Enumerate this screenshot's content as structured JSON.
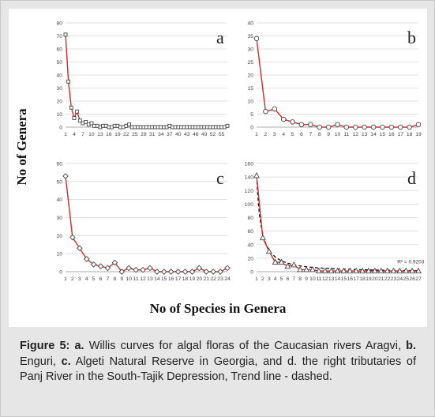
{
  "figure": {
    "ylabel": "No of Genera",
    "xlabel": "No of Species in Genera"
  },
  "caption": {
    "label": "Figure 5:",
    "parts": [
      {
        "bold": "a.",
        "text": " Willis curves for algal floras of the Caucasian rivers Aragvi, "
      },
      {
        "bold": "b.",
        "text": " Enguri, "
      },
      {
        "bold": "c.",
        "text": " Algeti Natural Reserve in Georgia, and d. the right tributaries of Panj River in the South-Tajik Depression, Trend line - dashed."
      }
    ]
  },
  "colors": {
    "line": "#d42a2a",
    "marker_stroke": "#444444",
    "grid": "#d9d9d9",
    "trend": "#111111"
  },
  "chart_data": [
    {
      "type": "line",
      "letter": "a",
      "marker": "square",
      "ylim": [
        0,
        80
      ],
      "yticks": [
        0,
        10,
        20,
        30,
        40,
        50,
        60,
        70,
        80
      ],
      "xlim": [
        1,
        57
      ],
      "xtick_labels": [
        "1",
        "4",
        "7",
        "10",
        "13",
        "16",
        "19",
        "22",
        "25",
        "28",
        "31",
        "34",
        "37",
        "40",
        "43",
        "46",
        "49",
        "52",
        "55"
      ],
      "x": [
        1,
        2,
        3,
        4,
        5,
        6,
        7,
        8,
        9,
        10,
        11,
        12,
        13,
        14,
        15,
        16,
        17,
        18,
        19,
        20,
        21,
        22,
        23,
        24,
        25,
        26,
        27,
        28,
        29,
        30,
        31,
        32,
        33,
        34,
        35,
        36,
        37,
        38,
        39,
        40,
        41,
        42,
        43,
        44,
        45,
        46,
        47,
        48,
        49,
        50,
        51,
        52,
        53,
        54,
        55,
        56,
        57
      ],
      "values": [
        71,
        35,
        15,
        7,
        12,
        5,
        3,
        4,
        2,
        3,
        1,
        1,
        0,
        1,
        1,
        0,
        0,
        1,
        1,
        0,
        0,
        1,
        2,
        0,
        0,
        0,
        0,
        0,
        0,
        0,
        0,
        0,
        0,
        0,
        0,
        0,
        1,
        0,
        0,
        0,
        0,
        0,
        0,
        0,
        0,
        0,
        0,
        0,
        0,
        0,
        0,
        0,
        0,
        0,
        0,
        0,
        1
      ],
      "grid": true,
      "legend": "none"
    },
    {
      "type": "line",
      "letter": "b",
      "marker": "circle",
      "ylim": [
        0,
        40
      ],
      "yticks": [
        0,
        5,
        10,
        15,
        20,
        25,
        30,
        35,
        40
      ],
      "xlim": [
        1,
        19
      ],
      "xtick_labels": [
        "1",
        "2",
        "3",
        "4",
        "5",
        "6",
        "7",
        "8",
        "9",
        "10",
        "11",
        "12",
        "13",
        "14",
        "15",
        "16",
        "17",
        "18",
        "19"
      ],
      "x": [
        1,
        2,
        3,
        4,
        5,
        6,
        7,
        8,
        9,
        10,
        11,
        12,
        13,
        14,
        15,
        16,
        17,
        18,
        19
      ],
      "values": [
        34,
        6,
        7,
        3,
        2,
        1,
        1,
        0,
        0,
        1,
        0,
        0,
        0,
        0,
        0,
        0,
        0,
        0,
        1
      ],
      "grid": true,
      "legend": "none"
    },
    {
      "type": "line",
      "letter": "c",
      "marker": "diamond",
      "ylim": [
        0,
        60
      ],
      "yticks": [
        0,
        10,
        20,
        30,
        40,
        50,
        60
      ],
      "xlim": [
        1,
        24
      ],
      "xtick_labels": [
        "1",
        "2",
        "3",
        "4",
        "5",
        "6",
        "7",
        "8",
        "9",
        "10",
        "11",
        "12",
        "13",
        "14",
        "15",
        "16",
        "17",
        "18",
        "19",
        "20",
        "21",
        "22",
        "23",
        "24"
      ],
      "x": [
        1,
        2,
        3,
        4,
        5,
        6,
        7,
        8,
        9,
        10,
        11,
        12,
        13,
        14,
        15,
        16,
        17,
        18,
        19,
        20,
        21,
        22,
        23,
        24
      ],
      "values": [
        53,
        19,
        13,
        7,
        4,
        3,
        2,
        5,
        0,
        2,
        1,
        1,
        2,
        0,
        0,
        0,
        0,
        0,
        0,
        2,
        0,
        0,
        0,
        2
      ],
      "grid": true,
      "legend": "none"
    },
    {
      "type": "line",
      "letter": "d",
      "marker": "triangle",
      "ylim": [
        0,
        160
      ],
      "yticks": [
        0,
        20,
        40,
        60,
        80,
        100,
        120,
        140,
        160
      ],
      "xlim": [
        1,
        27
      ],
      "xtick_labels": [
        "1",
        "2",
        "3",
        "4",
        "5",
        "6",
        "7",
        "8",
        "9",
        "10",
        "11",
        "12",
        "13",
        "14",
        "15",
        "16",
        "17",
        "18",
        "19",
        "20",
        "21",
        "22",
        "23",
        "24",
        "25",
        "26",
        "27"
      ],
      "x": [
        1,
        2,
        3,
        4,
        5,
        6,
        7,
        8,
        9,
        10,
        11,
        12,
        13,
        14,
        15,
        16,
        17,
        18,
        19,
        20,
        21,
        22,
        23,
        24,
        25,
        26,
        27
      ],
      "values": [
        142,
        50,
        30,
        14,
        14,
        8,
        10,
        3,
        3,
        3,
        1,
        1,
        1,
        1,
        1,
        1,
        1,
        1,
        1,
        1,
        1,
        1,
        1,
        1,
        1,
        1,
        1
      ],
      "trendline": "power, dashed",
      "r2_label": "R² = 0.9203",
      "grid": true,
      "legend": "none"
    }
  ]
}
